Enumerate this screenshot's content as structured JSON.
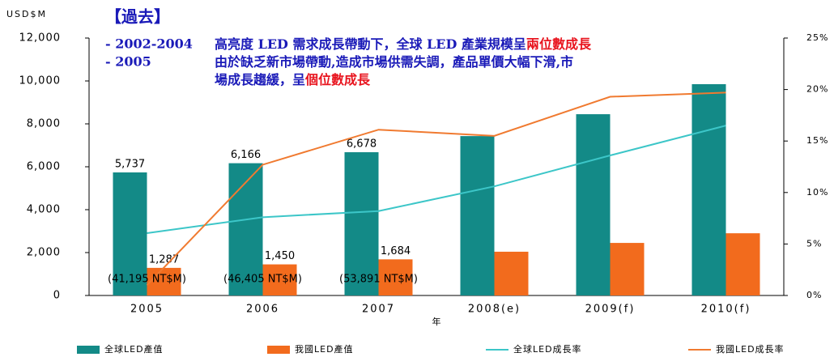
{
  "chart_data": {
    "type": "bar_line",
    "y_label": "USD$M",
    "x_label": "年",
    "heading": "【過去】",
    "notes": [
      {
        "bullet": "- 2002-2004",
        "lines": [
          {
            "text": "高亮度 LED 需求成長帶動下，全球 LED 產業規模呈",
            "highlight": "兩位數成長"
          }
        ]
      },
      {
        "bullet": "- 2005",
        "lines": [
          {
            "text": "由於缺乏新市場帶動,造成市場供需失調，產品單價大幅下滑,市"
          },
          {
            "text": "場成長趨緩，呈",
            "highlight": "個位數成長"
          }
        ]
      }
    ],
    "categories": [
      "2005",
      "2006",
      "2007",
      "2008(e)",
      "2009(f)",
      "2010(f)"
    ],
    "series": [
      {
        "name": "全球LED產值",
        "kind": "bar",
        "color": "#138a87",
        "values": [
          5737,
          6166,
          6678,
          7430,
          8450,
          9850
        ],
        "value_labels": [
          "5,737",
          "6,166",
          "6,678",
          null,
          null,
          null
        ]
      },
      {
        "name": "我國LED產值",
        "kind": "bar",
        "color": "#f26b1d",
        "values": [
          1287,
          1450,
          1684,
          2040,
          2450,
          2900
        ],
        "value_labels": [
          "1,287",
          "1,450",
          "1,684",
          null,
          null,
          null
        ]
      },
      {
        "name": "全球LED成長率",
        "kind": "line",
        "axis": "y2",
        "color": "#3cc6c8",
        "values": [
          6.05,
          7.6,
          8.2,
          10.6,
          13.6,
          16.5
        ]
      },
      {
        "name": "我國LED成長率",
        "kind": "line",
        "axis": "y2",
        "color": "#f07a30",
        "values": [
          1,
          12.7,
          16.1,
          15.5,
          19.3,
          19.7
        ]
      }
    ],
    "annotations": [
      "(41,195 NT$M)",
      "(46,405 NT$M)",
      "(53,891 NT$M)"
    ],
    "ylim": [
      0,
      12000
    ],
    "yticks": [
      0,
      {
        "value": 2000,
        "label": "2,000"
      },
      {
        "value": 4000,
        "label": "4,000"
      },
      {
        "value": 6000,
        "label": "6,000"
      },
      {
        "value": 8000,
        "label": "8,000"
      },
      {
        "value": 10000,
        "label": "10,000"
      },
      {
        "value": 12000,
        "label": "12,000"
      }
    ],
    "y2lim": [
      0,
      25
    ],
    "y2ticks": [
      {
        "value": 0,
        "label": "0%"
      },
      {
        "value": 5,
        "label": "5%"
      },
      {
        "value": 10,
        "label": "10%"
      },
      {
        "value": 15,
        "label": "15%"
      },
      {
        "value": 20,
        "label": "20%"
      },
      {
        "value": 25,
        "label": "25%"
      }
    ]
  }
}
